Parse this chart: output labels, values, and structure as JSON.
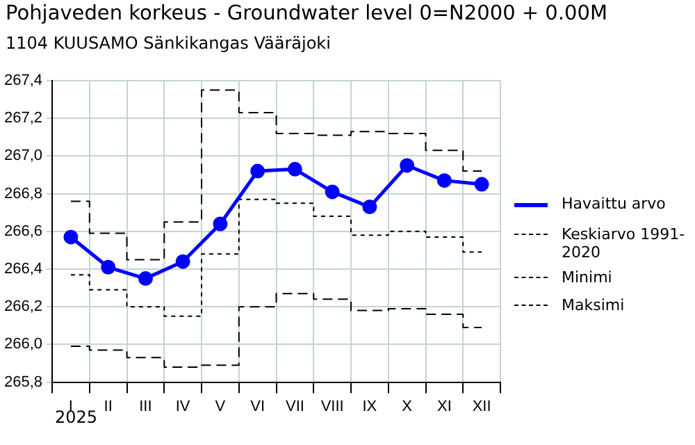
{
  "chart_data": {
    "type": "line",
    "title": "Pohjaveden korkeus - Groundwater level 0=N2000 + 0.00M",
    "subtitle": "1104 KUUSAMO Sänkikangas Vääräjoki",
    "categories": [
      "I",
      "II",
      "III",
      "IV",
      "V",
      "VI",
      "VII",
      "VIII",
      "IX",
      "X",
      "XI",
      "XII"
    ],
    "series": [
      {
        "name": "Havaittu arvo",
        "color": "#0000ff",
        "marker": "circle",
        "line_style": "solid",
        "values": [
          266.57,
          266.41,
          266.35,
          266.44,
          266.64,
          266.92,
          266.93,
          266.81,
          266.73,
          266.95,
          266.87,
          266.85
        ]
      },
      {
        "name": "Keskiarvo 1991-2020",
        "type": "step",
        "color": "#000000",
        "line_style": "dotted",
        "values": [
          266.37,
          266.29,
          266.2,
          266.15,
          266.48,
          266.77,
          266.75,
          266.68,
          266.58,
          266.6,
          266.57,
          266.49
        ]
      },
      {
        "name": "Minimi",
        "type": "step",
        "color": "#000000",
        "line_style": "dashed",
        "values": [
          265.99,
          265.97,
          265.93,
          265.88,
          265.89,
          266.2,
          266.27,
          266.24,
          266.18,
          266.19,
          266.16,
          266.09
        ]
      },
      {
        "name": "Maksimi",
        "type": "step",
        "color": "#000000",
        "line_style": "dashed",
        "values": [
          266.76,
          266.59,
          266.45,
          266.65,
          267.35,
          267.23,
          267.12,
          267.11,
          267.13,
          267.12,
          267.03,
          266.92
        ]
      }
    ],
    "ylim": [
      265.8,
      267.4
    ],
    "yticks": [
      {
        "value": 265.8,
        "label": "265,8"
      },
      {
        "value": 266,
        "label": "266,0"
      },
      {
        "value": 266.2,
        "label": "266,2"
      },
      {
        "value": 266.4,
        "label": "266,4"
      },
      {
        "value": 266.6,
        "label": "266,6"
      },
      {
        "value": 266.8,
        "label": "266,8"
      },
      {
        "value": 267,
        "label": "267,0"
      },
      {
        "value": 267.2,
        "label": "267,2"
      },
      {
        "value": 267.4,
        "label": "267,4"
      }
    ],
    "annotations": [
      "2025"
    ],
    "grid": true,
    "legend": "right"
  }
}
